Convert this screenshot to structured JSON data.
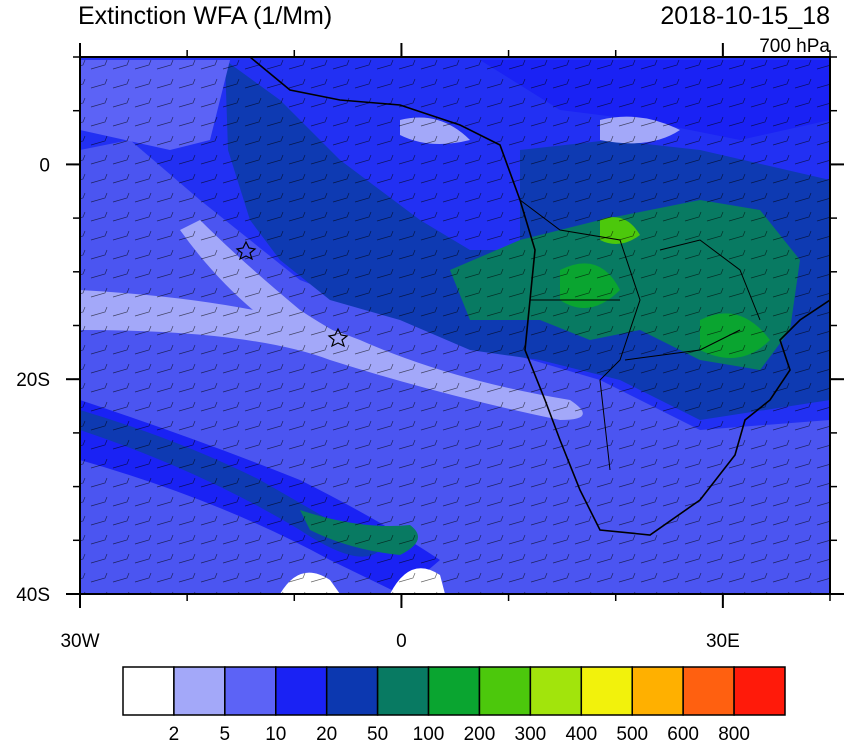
{
  "header": {
    "title": "Extinction WFA (1/Mm)",
    "time": "2018-10-15_18",
    "level": "700 hPa"
  },
  "map": {
    "lon_range": [
      -30,
      40
    ],
    "lat_range": [
      -40,
      10
    ],
    "lon_ticks": [
      {
        "value": -30,
        "label": "30W"
      },
      0,
      {
        "value": 30,
        "label": "30E"
      }
    ],
    "lat_ticks": [
      0,
      {
        "value": -20,
        "label": "20S"
      },
      {
        "value": -40,
        "label": "40S"
      }
    ]
  },
  "colorbar": {
    "levels": [
      2,
      5,
      10,
      20,
      50,
      100,
      200,
      300,
      400,
      500,
      600,
      800
    ],
    "colors": [
      "#ffffff",
      "#a3a8f9",
      "#5c63f6",
      "#1a22f4",
      "#0c38b0",
      "#087a62",
      "#0aa530",
      "#4cc80c",
      "#a2e40c",
      "#f2f20c",
      "#ffb000",
      "#ff6010",
      "#ff1a0a"
    ]
  }
}
